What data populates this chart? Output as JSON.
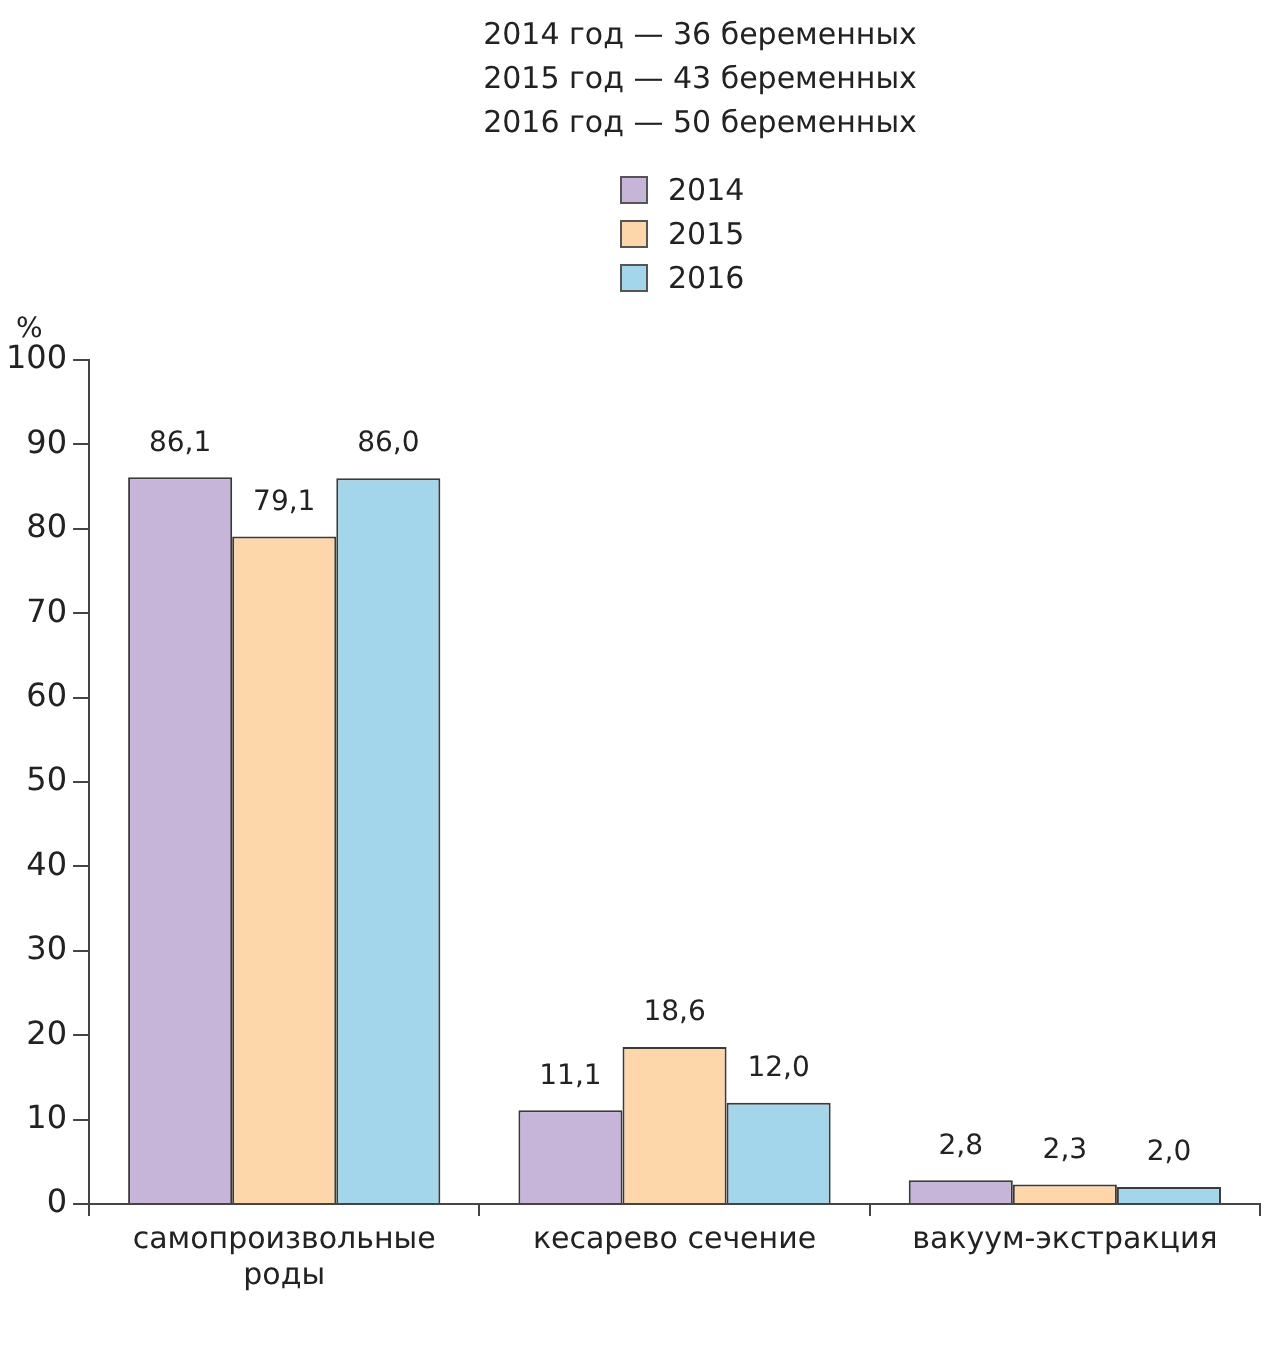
{
  "chart_data": {
    "type": "bar",
    "annotations": [
      "2014 год — 36 беременных",
      "2015 год — 43 беременных",
      "2016 год — 50 беременных"
    ],
    "ylabel": "%",
    "categories": [
      "самопроизвольные роды",
      "кесарево сечение",
      "вакуум-экстракция"
    ],
    "series": [
      {
        "name": "2014",
        "color": "#c6b4d9",
        "values": [
          86.1,
          11.1,
          2.8
        ],
        "value_labels": [
          "86,1",
          "11,1",
          "2,8"
        ]
      },
      {
        "name": "2015",
        "color": "#fdd6a9",
        "values": [
          79.1,
          18.6,
          2.3
        ],
        "value_labels": [
          "79,1",
          "18,6",
          "2,3"
        ]
      },
      {
        "name": "2016",
        "color": "#a4d6eb",
        "values": [
          86.0,
          12.0,
          2.0
        ],
        "value_labels": [
          "86,0",
          "12,0",
          "2,0"
        ]
      }
    ],
    "ylim": [
      0,
      100
    ],
    "yticks": [
      0,
      10,
      20,
      30,
      40,
      50,
      60,
      70,
      80,
      90,
      100
    ],
    "grid": false,
    "legend": "top"
  }
}
